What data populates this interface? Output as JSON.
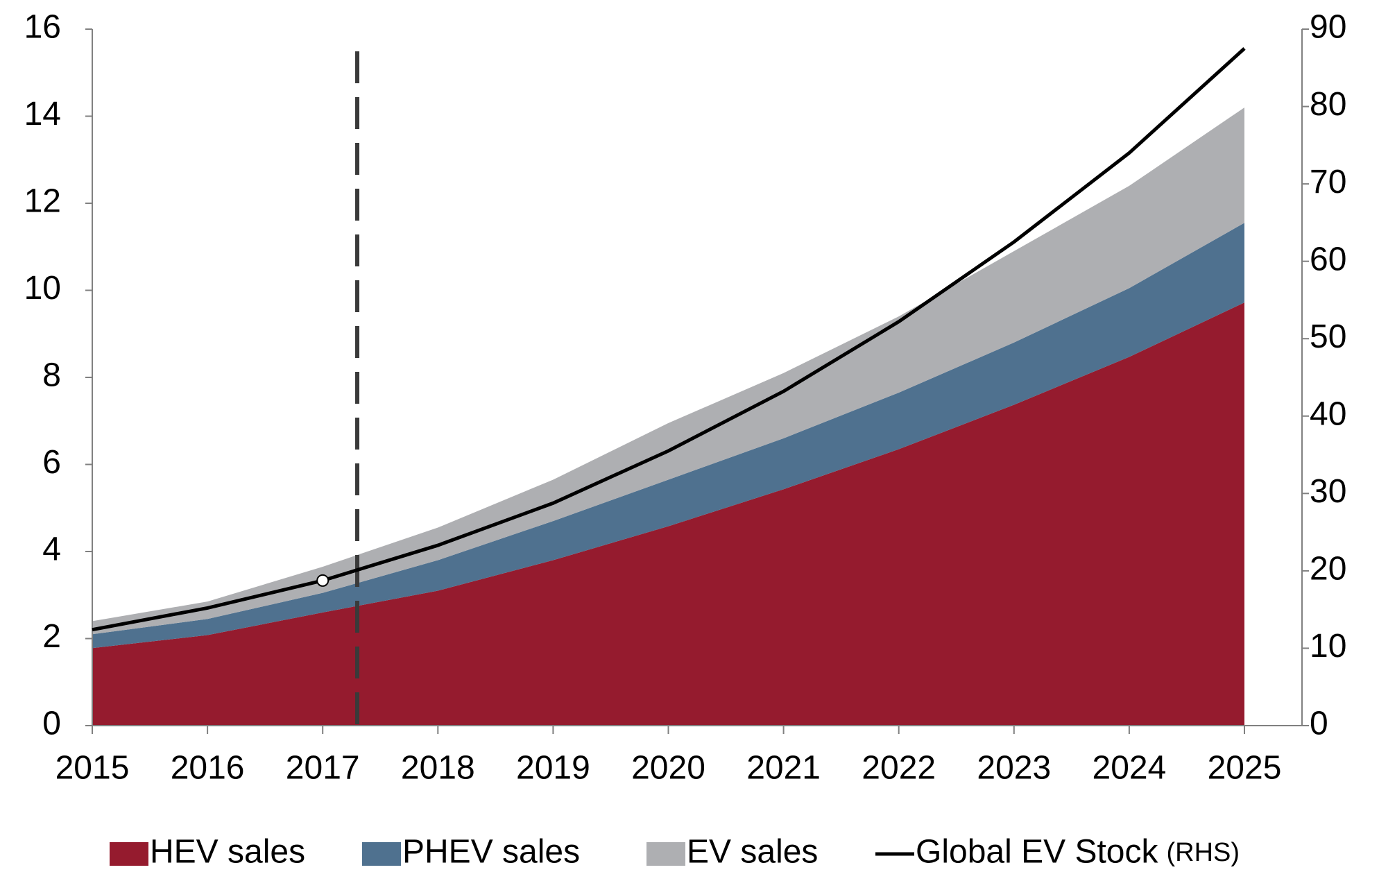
{
  "chart_data": {
    "type": "stacked_area",
    "categories": [
      "2015",
      "2016",
      "2017",
      "2018",
      "2019",
      "2020",
      "2021",
      "2022",
      "2023",
      "2024",
      "2025"
    ],
    "series": [
      {
        "name": "HEV sales",
        "color": "#951b2e",
        "values": [
          1.78,
          2.08,
          2.6,
          3.1,
          3.8,
          4.58,
          5.43,
          6.35,
          7.37,
          8.47,
          9.72
        ]
      },
      {
        "name": "PHEV sales",
        "color": "#4f718f",
        "values": [
          0.32,
          0.37,
          0.45,
          0.7,
          0.9,
          1.07,
          1.17,
          1.3,
          1.43,
          1.58,
          1.83
        ]
      },
      {
        "name": "EV sales",
        "color": "#aeafb2",
        "values": [
          0.3,
          0.4,
          0.6,
          0.75,
          0.95,
          1.3,
          1.5,
          1.75,
          2.1,
          2.35,
          2.65
        ]
      },
      {
        "name": "Global EV Stock",
        "legend_suffix": "(RHS)",
        "type": "line",
        "axis": "y2",
        "color": "#000000",
        "values": [
          12.4,
          15.2,
          18.75,
          23.3,
          28.75,
          35.5,
          43.2,
          52.2,
          62.5,
          74,
          87.5
        ]
      }
    ],
    "ylim": [
      0,
      16
    ],
    "yticks": [
      0,
      2,
      4,
      6,
      8,
      10,
      12,
      14,
      16
    ],
    "y2lim": [
      0,
      90
    ],
    "y2ticks": [
      0,
      10,
      20,
      30,
      40,
      50,
      60,
      70,
      80,
      90
    ],
    "vline": 2017.3,
    "marker_category": "2017",
    "grid": false,
    "legend": "bottom"
  }
}
